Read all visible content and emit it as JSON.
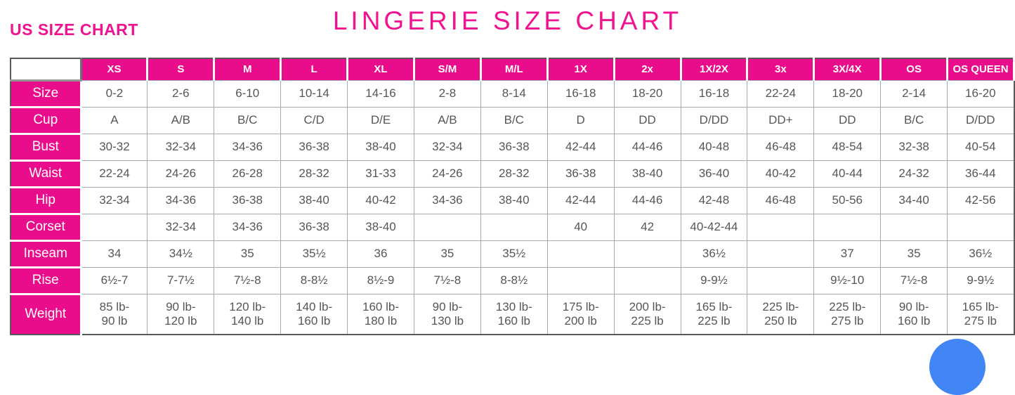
{
  "page": {
    "subtitle": "US SIZE CHART",
    "title": "LINGERIE SIZE CHART"
  },
  "colors": {
    "header_pink": "#E90D8C",
    "title_pink": "#F0128F",
    "outer_border": "#58595B",
    "grid_line": "#A7A9AC",
    "cell_text": "#54565A",
    "chat_blue": "#4285F4"
  },
  "chart_data": {
    "type": "table",
    "title": "LINGERIE SIZE CHART",
    "subtitle": "US SIZE CHART",
    "columns": [
      "XS",
      "S",
      "M",
      "L",
      "XL",
      "S/M",
      "M/L",
      "1X",
      "2x",
      "1X/2X",
      "3x",
      "3X/4X",
      "OS",
      "OS QUEEN"
    ],
    "rows": [
      {
        "label": "Size",
        "values": [
          "0-2",
          "2-6",
          "6-10",
          "10-14",
          "14-16",
          "2-8",
          "8-14",
          "16-18",
          "18-20",
          "16-18",
          "22-24",
          "18-20",
          "2-14",
          "16-20"
        ]
      },
      {
        "label": "Cup",
        "values": [
          "A",
          "A/B",
          "B/C",
          "C/D",
          "D/E",
          "A/B",
          "B/C",
          "D",
          "DD",
          "D/DD",
          "DD+",
          "DD",
          "B/C",
          "D/DD"
        ]
      },
      {
        "label": "Bust",
        "values": [
          "30-32",
          "32-34",
          "34-36",
          "36-38",
          "38-40",
          "32-34",
          "36-38",
          "42-44",
          "44-46",
          "40-48",
          "46-48",
          "48-54",
          "32-38",
          "40-54"
        ]
      },
      {
        "label": "Waist",
        "values": [
          "22-24",
          "24-26",
          "26-28",
          "28-32",
          "31-33",
          "24-26",
          "28-32",
          "36-38",
          "38-40",
          "36-40",
          "40-42",
          "40-44",
          "24-32",
          "36-44"
        ]
      },
      {
        "label": "Hip",
        "values": [
          "32-34",
          "34-36",
          "36-38",
          "38-40",
          "40-42",
          "34-36",
          "38-40",
          "42-44",
          "44-46",
          "42-48",
          "46-48",
          "50-56",
          "34-40",
          "42-56"
        ]
      },
      {
        "label": "Corset",
        "values": [
          "",
          "32-34",
          "34-36",
          "36-38",
          "38-40",
          "",
          "",
          "40",
          "42",
          "40-42-44",
          "",
          "",
          "",
          ""
        ]
      },
      {
        "label": "Inseam",
        "values": [
          "34",
          "34½",
          "35",
          "35½",
          "36",
          "35",
          "35½",
          "",
          "",
          "36½",
          "",
          "37",
          "35",
          "36½"
        ]
      },
      {
        "label": "Rise",
        "values": [
          "6½-7",
          "7-7½",
          "7½-8",
          "8-8½",
          "8½-9",
          "7½-8",
          "8-8½",
          "",
          "",
          "9-9½",
          "",
          "9½-10",
          "7½-8",
          "9-9½"
        ]
      },
      {
        "label": "Weight",
        "values": [
          "85 lb-\n90 lb",
          "90 lb-\n120 lb",
          "120 lb-\n140 lb",
          "140 lb-\n160 lb",
          "160 lb-\n180 lb",
          "90 lb-\n130 lb",
          "130 lb-\n160 lb",
          "175 lb-\n200 lb",
          "200 lb-\n225 lb",
          "165 lb-\n225 lb",
          "225 lb-\n250 lb",
          "225 lb-\n275 lb",
          "90 lb-\n160 lb",
          "165 lb-\n275 lb"
        ]
      }
    ]
  }
}
